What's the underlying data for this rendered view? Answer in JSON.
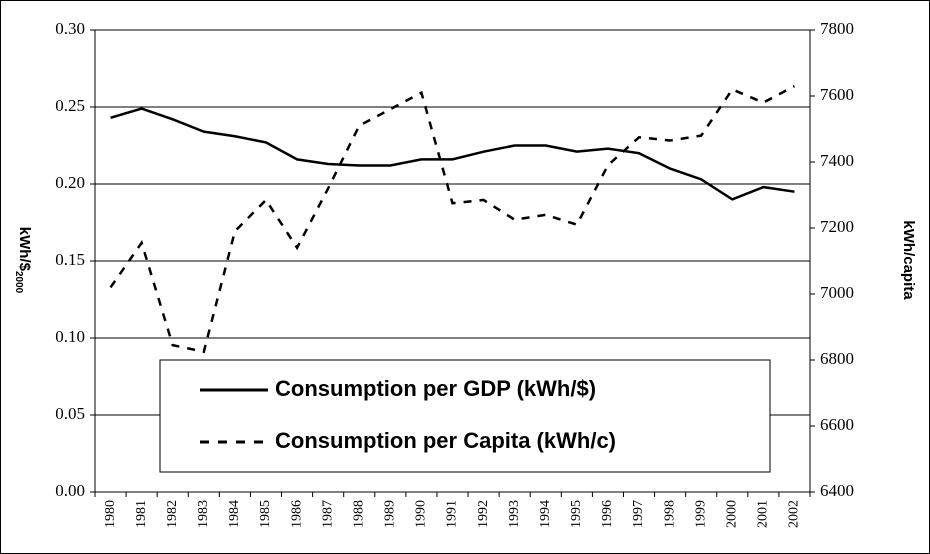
{
  "chart_data": {
    "type": "line",
    "y_label": "kWh/$",
    "y_label_subscript": "2000",
    "y2_label": "kWh/capita",
    "categories": [
      "1980",
      "1981",
      "1982",
      "1983",
      "1984",
      "1985",
      "1986",
      "1987",
      "1988",
      "1989",
      "1990",
      "1991",
      "1992",
      "1993",
      "1994",
      "1995",
      "1996",
      "1997",
      "1998",
      "1999",
      "2000",
      "2001",
      "2002"
    ],
    "series": [
      {
        "name": "Consumption per GDP (kWh/$)",
        "color": "#000000",
        "dash": "solid",
        "values": [
          0.243,
          0.249,
          0.242,
          0.234,
          0.231,
          0.227,
          0.216,
          0.213,
          0.212,
          0.212,
          0.216,
          0.216,
          0.221,
          0.225,
          0.225,
          0.221,
          0.223,
          0.22,
          0.21,
          0.203,
          0.19,
          0.198,
          0.195
        ]
      },
      {
        "name": "Consumption per Capita (kWh/c)",
        "color": "#000000",
        "dash": "dashed",
        "axis": "y2",
        "values": [
          7020,
          7155,
          6845,
          6825,
          7190,
          7285,
          7140,
          7320,
          7510,
          7560,
          7610,
          7275,
          7285,
          7225,
          7240,
          7210,
          7390,
          7475,
          7465,
          7480,
          7620,
          7580,
          7630
        ]
      }
    ],
    "ylim": [
      0,
      0.3
    ],
    "yticks": [
      {
        "value": 0,
        "label": "0.00"
      },
      {
        "value": 0.05,
        "label": "0.05"
      },
      {
        "value": 0.1,
        "label": "0.10"
      },
      {
        "value": 0.15,
        "label": "0.15"
      },
      {
        "value": 0.2,
        "label": "0.20"
      },
      {
        "value": 0.25,
        "label": "0.25"
      },
      {
        "value": 0.3,
        "label": "0.30"
      }
    ],
    "y2lim": [
      6400,
      7800
    ],
    "y2ticks": [
      6400,
      6600,
      6800,
      7000,
      7200,
      7400,
      7600,
      7800
    ],
    "grid": true
  }
}
